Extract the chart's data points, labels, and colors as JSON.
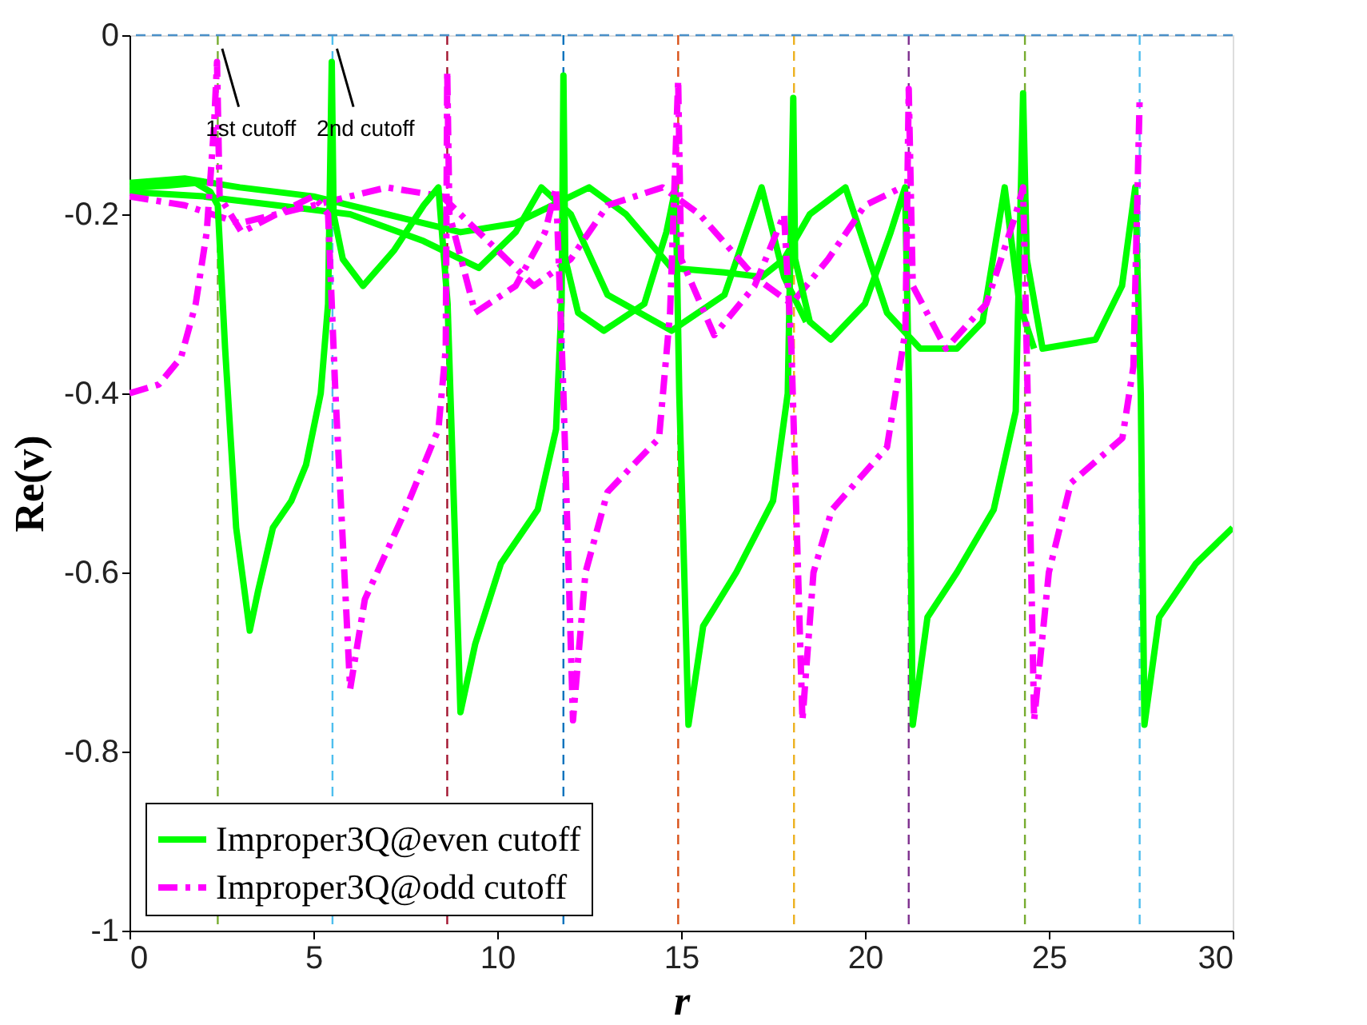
{
  "chart_data": {
    "type": "line",
    "xlabel": "r",
    "ylabel": "Re(v)",
    "xlim": [
      0,
      30
    ],
    "ylim": [
      -1,
      0
    ],
    "xticks": [
      0,
      5,
      10,
      15,
      20,
      25,
      30
    ],
    "yticks": [
      -1,
      -0.8,
      -0.6,
      -0.4,
      -0.2,
      0
    ],
    "grid": false,
    "legend": "bottom left",
    "marker": "none",
    "series": [
      {
        "name": "Improper3Q@even cutoff",
        "color": "#00ff00",
        "line_style": "solid",
        "x": [
          0,
          1,
          1.8,
          2.2,
          2.4,
          2.6,
          2.9,
          3.27,
          3.5,
          3.9,
          4.4,
          4.8,
          5.2,
          5.4,
          5.5,
          5.55,
          5.8,
          6.35,
          7.2,
          8.0,
          8.4,
          8.65,
          9.0,
          9.4,
          10.1,
          11.1,
          11.6,
          11.75,
          11.8,
          11.85,
          12.2,
          12.9,
          14.0,
          14.6,
          14.85,
          14.95,
          15.2,
          15.6,
          16.5,
          17.5,
          17.9,
          18.05,
          18.1,
          18.5,
          19.07,
          20.0,
          20.7,
          21.09,
          21.2,
          21.3,
          21.7,
          22.5,
          23.5,
          24.1,
          24.3,
          24.4,
          24.83,
          26.27,
          26.99,
          27.35,
          27.5,
          27.6,
          28.0,
          29.0,
          30
        ],
        "values": [
          -0.17,
          -0.168,
          -0.165,
          -0.175,
          -0.19,
          -0.35,
          -0.55,
          -0.665,
          -0.62,
          -0.55,
          -0.52,
          -0.48,
          -0.4,
          -0.3,
          -0.03,
          -0.2,
          -0.25,
          -0.28,
          -0.24,
          -0.19,
          -0.17,
          -0.3,
          -0.756,
          -0.68,
          -0.59,
          -0.53,
          -0.44,
          -0.3,
          -0.045,
          -0.25,
          -0.31,
          -0.33,
          -0.3,
          -0.22,
          -0.17,
          -0.4,
          -0.77,
          -0.66,
          -0.6,
          -0.52,
          -0.4,
          -0.07,
          -0.25,
          -0.32,
          -0.34,
          -0.3,
          -0.22,
          -0.17,
          -0.4,
          -0.77,
          -0.65,
          -0.6,
          -0.53,
          -0.42,
          -0.065,
          -0.25,
          -0.35,
          -0.34,
          -0.28,
          -0.17,
          -0.4,
          -0.77,
          -0.65,
          -0.59,
          -0.55
        ]
      },
      {
        "name": "Improper3Q@odd cutoff",
        "color": "#ff00ff",
        "line_style": "dashed",
        "x": [
          0,
          0.8,
          1.4,
          1.8,
          2.1,
          2.3,
          2.38,
          2.45,
          3.05,
          4,
          5.0,
          5.4,
          5.6,
          6.0,
          6.4,
          7.4,
          8.4,
          8.6,
          8.64,
          8.7,
          9.4,
          10.5,
          11.3,
          11.6,
          11.8,
          12.06,
          12.4,
          13.0,
          14.4,
          14.7,
          14.92,
          15.0,
          15.9,
          17.0,
          17.8,
          18.0,
          18.3,
          18.6,
          19.1,
          20.6,
          21.1,
          21.19,
          21.3,
          22.2,
          23.3,
          24.1,
          24.3,
          24.45,
          24.6,
          25.0,
          25.6,
          27.0,
          27.3,
          27.47
        ],
        "values": [
          -0.4,
          -0.39,
          -0.36,
          -0.3,
          -0.22,
          -0.1,
          -0.03,
          -0.18,
          -0.22,
          -0.2,
          -0.18,
          -0.2,
          -0.4,
          -0.73,
          -0.63,
          -0.54,
          -0.44,
          -0.35,
          -0.04,
          -0.2,
          -0.31,
          -0.28,
          -0.22,
          -0.17,
          -0.4,
          -0.765,
          -0.6,
          -0.51,
          -0.45,
          -0.31,
          -0.05,
          -0.25,
          -0.335,
          -0.28,
          -0.2,
          -0.35,
          -0.765,
          -0.6,
          -0.53,
          -0.46,
          -0.33,
          -0.06,
          -0.28,
          -0.35,
          -0.3,
          -0.2,
          -0.17,
          -0.45,
          -0.765,
          -0.6,
          -0.5,
          -0.45,
          -0.37,
          -0.07
        ]
      },
      {
        "color": "#00ff00",
        "line_style": "solid",
        "x": [
          0,
          1.5,
          3,
          5,
          7,
          9,
          10.5,
          11.5,
          12.5,
          13.5,
          14.74,
          16.18,
          17.19,
          17.8,
          18.5,
          19.47,
          20.6,
          21.5,
          22.5,
          23.2,
          23.8,
          24.2,
          24.6
        ],
        "values": [
          -0.165,
          -0.16,
          -0.17,
          -0.18,
          -0.2,
          -0.22,
          -0.21,
          -0.19,
          -0.17,
          -0.2,
          -0.26,
          -0.265,
          -0.27,
          -0.25,
          -0.2,
          -0.17,
          -0.31,
          -0.35,
          -0.35,
          -0.32,
          -0.17,
          -0.3,
          -0.35
        ]
      },
      {
        "color": "#00ff00",
        "line_style": "solid",
        "x": [
          0,
          2,
          4,
          6,
          8,
          9.5,
          10.5,
          11.2,
          12,
          13,
          14.74,
          16.18,
          17.19,
          17.8,
          18.4
        ],
        "values": [
          -0.175,
          -0.18,
          -0.19,
          -0.2,
          -0.23,
          -0.26,
          -0.22,
          -0.17,
          -0.2,
          -0.29,
          -0.33,
          -0.29,
          -0.17,
          -0.27,
          -0.32
        ]
      },
      {
        "color": "#ff00ff",
        "line_style": "dashed",
        "x": [
          0,
          1.5,
          3,
          5,
          7,
          8.5,
          10,
          11,
          12,
          13,
          14.5,
          15.5,
          17,
          18,
          19,
          20,
          21
        ],
        "values": [
          -0.18,
          -0.19,
          -0.21,
          -0.19,
          -0.17,
          -0.18,
          -0.24,
          -0.28,
          -0.25,
          -0.19,
          -0.17,
          -0.2,
          -0.27,
          -0.3,
          -0.25,
          -0.19,
          -0.17
        ]
      }
    ],
    "ref_lines": [
      {
        "axis": "y",
        "value": 0,
        "color": "#4a90c8",
        "line_style": "dashed"
      },
      {
        "axis": "x",
        "value": 2.4,
        "color": "#77ac30",
        "line_style": "dashed"
      },
      {
        "axis": "x",
        "value": 5.52,
        "color": "#4dbeee",
        "line_style": "dashed"
      },
      {
        "axis": "x",
        "value": 8.64,
        "color": "#a2142f",
        "line_style": "dashed"
      },
      {
        "axis": "x",
        "value": 11.8,
        "color": "#0072bd",
        "line_style": "dashed"
      },
      {
        "axis": "x",
        "value": 14.92,
        "color": "#d95319",
        "line_style": "dashed"
      },
      {
        "axis": "x",
        "value": 18.07,
        "color": "#edb120",
        "line_style": "dashed"
      },
      {
        "axis": "x",
        "value": 21.19,
        "color": "#7e2f8e",
        "line_style": "dashed"
      },
      {
        "axis": "x",
        "value": 24.35,
        "color": "#77ac30",
        "line_style": "dashed"
      },
      {
        "axis": "x",
        "value": 27.47,
        "color": "#4dbeee",
        "line_style": "dashed"
      }
    ],
    "annotations": [
      {
        "text": "1st cutoff",
        "x": 2.4,
        "y": -0.015
      },
      {
        "text": "2nd cutoff",
        "x": 5.52,
        "y": -0.015
      }
    ]
  }
}
